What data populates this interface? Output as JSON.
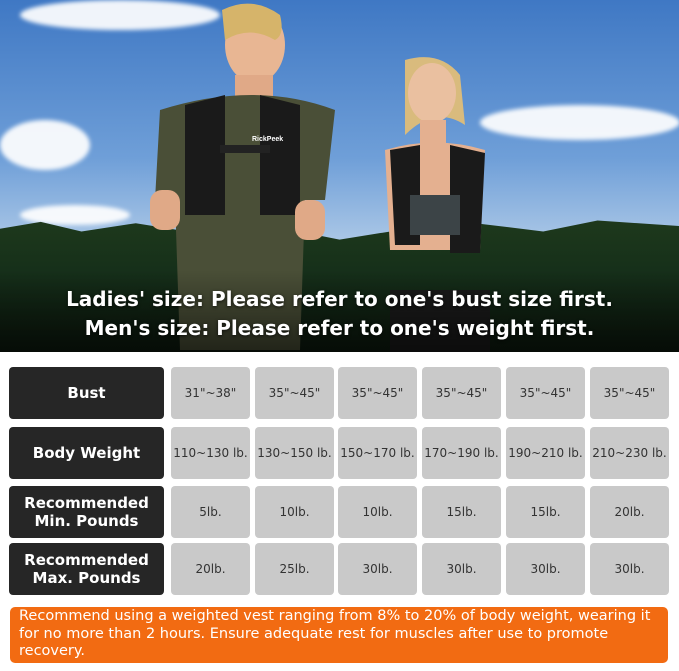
{
  "headline": {
    "line1": "Ladies' size: Please refer to one's bust size first.",
    "line2": "Men's size: Please refer to one's weight first."
  },
  "brand_logo_text": "RickPeek",
  "table": {
    "rows": [
      {
        "label": "Bust",
        "values": [
          "31\"~38\"",
          "35\"~45\"",
          "35\"~45\"",
          "35\"~45\"",
          "35\"~45\"",
          "35\"~45\""
        ]
      },
      {
        "label": "Body Weight",
        "values": [
          "110~130 lb.",
          "130~150 lb.",
          "150~170 lb.",
          "170~190 lb.",
          "190~210 lb.",
          "210~230 lb."
        ]
      },
      {
        "label": "Recommended Min. Pounds",
        "values": [
          "5lb.",
          "10lb.",
          "10lb.",
          "15lb.",
          "15lb.",
          "20lb."
        ]
      },
      {
        "label": "Recommended Max. Pounds",
        "values": [
          "20lb.",
          "25lb.",
          "30lb.",
          "30lb.",
          "30lb.",
          "30lb."
        ]
      }
    ]
  },
  "note": "Recommend using a weighted vest ranging from 8% to 20% of body weight, wearing it for no more than 2 hours. Ensure adequate rest for muscles after use to promote recovery.",
  "colors": {
    "label_bg": "#262626",
    "cell_bg": "#c9c9c9",
    "note_bg": "#f26b12"
  }
}
